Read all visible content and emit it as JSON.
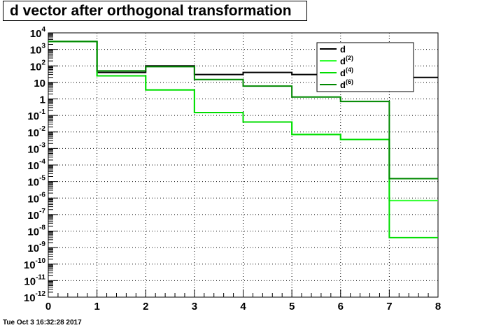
{
  "chart_data": {
    "type": "line",
    "title": "d vector after orthogonal transformation",
    "xlabel": "",
    "ylabel": "",
    "xlim": [
      0,
      8
    ],
    "ylim": [
      1e-12,
      10000.0
    ],
    "y_scale": "log",
    "grid": true,
    "legend_position": "top-right",
    "x_ticks": [
      "0",
      "1",
      "2",
      "3",
      "4",
      "5",
      "6",
      "7",
      "8"
    ],
    "y_ticks": [
      {
        "base": "10",
        "exp": "-12",
        "value": 1e-12
      },
      {
        "base": "10",
        "exp": "-11",
        "value": 1e-11
      },
      {
        "base": "10",
        "exp": "-10",
        "value": 1e-10
      },
      {
        "base": "10",
        "exp": "-9",
        "value": 1e-09
      },
      {
        "base": "10",
        "exp": "-8",
        "value": 1e-08
      },
      {
        "base": "10",
        "exp": "-7",
        "value": 1e-07
      },
      {
        "base": "10",
        "exp": "-6",
        "value": 1e-06
      },
      {
        "base": "10",
        "exp": "-5",
        "value": 1e-05
      },
      {
        "base": "10",
        "exp": "-4",
        "value": 0.0001
      },
      {
        "base": "10",
        "exp": "-3",
        "value": 0.001
      },
      {
        "base": "10",
        "exp": "-2",
        "value": 0.01
      },
      {
        "base": "10",
        "exp": "-1",
        "value": 0.1
      },
      {
        "base": "1",
        "exp": "",
        "value": 1
      },
      {
        "base": "10",
        "exp": "",
        "value": 10
      },
      {
        "base": "10",
        "exp": "2",
        "value": 100
      },
      {
        "base": "10",
        "exp": "3",
        "value": 1000
      },
      {
        "base": "10",
        "exp": "4",
        "value": 10000
      }
    ],
    "bin_edges": [
      0,
      1,
      2,
      3,
      4,
      5,
      6,
      7,
      8
    ],
    "series": [
      {
        "name": "d",
        "label_base": "d",
        "label_sup": "",
        "color": "#000000",
        "values": [
          3000,
          40,
          100,
          30,
          40,
          30,
          20,
          20
        ]
      },
      {
        "name": "d(2)",
        "label_base": "d",
        "label_sup": "(2)",
        "color": "#33ff33",
        "values": [
          3000,
          25,
          3.5,
          0.15,
          0.04,
          0.007,
          0.0035,
          7e-07
        ]
      },
      {
        "name": "d(4)",
        "label_base": "d",
        "label_sup": "(4)",
        "color": "#00dd00",
        "values": [
          3000,
          25,
          3.5,
          0.15,
          0.04,
          0.007,
          0.0035,
          4e-09
        ]
      },
      {
        "name": "d(6)",
        "label_base": "d",
        "label_sup": "(6)",
        "color": "#008800",
        "values": [
          3000,
          50,
          90,
          15,
          6,
          1.3,
          0.7,
          1.5e-05
        ]
      }
    ]
  },
  "footer": {
    "timestamp": "Tue Oct  3 16:32:28 2017"
  }
}
